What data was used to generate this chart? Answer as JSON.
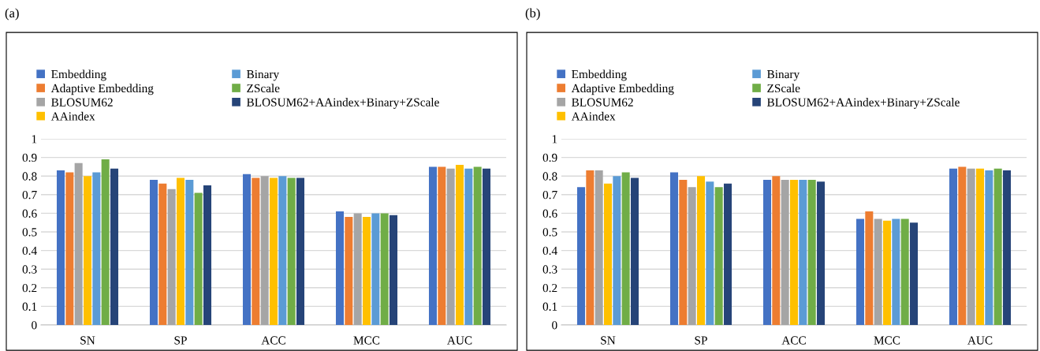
{
  "chart_data": [
    {
      "type": "bar",
      "title": "(a)",
      "categories": [
        "SN",
        "SP",
        "ACC",
        "MCC",
        "AUC"
      ],
      "ylim": [
        0,
        1
      ],
      "yticks": [
        0,
        0.1,
        0.2,
        0.3,
        0.4,
        0.5,
        0.6,
        0.7,
        0.8,
        0.9,
        1
      ],
      "grid": "y",
      "legend": "top left",
      "series": [
        {
          "name": "Embedding",
          "color": "#4472c4",
          "values": [
            0.83,
            0.78,
            0.81,
            0.61,
            0.85
          ]
        },
        {
          "name": "Adaptive Embedding",
          "color": "#ed7d31",
          "values": [
            0.82,
            0.76,
            0.79,
            0.58,
            0.85
          ]
        },
        {
          "name": "BLOSUM62",
          "color": "#a5a5a5",
          "values": [
            0.87,
            0.73,
            0.8,
            0.6,
            0.84
          ]
        },
        {
          "name": "AAindex",
          "color": "#ffc000",
          "values": [
            0.8,
            0.79,
            0.79,
            0.58,
            0.86
          ]
        },
        {
          "name": "Binary",
          "color": "#5b9bd5",
          "values": [
            0.82,
            0.78,
            0.8,
            0.6,
            0.84
          ]
        },
        {
          "name": "ZScale",
          "color": "#70ad47",
          "values": [
            0.89,
            0.71,
            0.79,
            0.6,
            0.85
          ]
        },
        {
          "name": "BLOSUM62+AAindex+Binary+ZScale",
          "color": "#264478",
          "values": [
            0.84,
            0.75,
            0.79,
            0.59,
            0.84
          ]
        }
      ]
    },
    {
      "type": "bar",
      "title": "(b)",
      "categories": [
        "SN",
        "SP",
        "ACC",
        "MCC",
        "AUC"
      ],
      "ylim": [
        0,
        1
      ],
      "yticks": [
        0,
        0.1,
        0.2,
        0.3,
        0.4,
        0.5,
        0.6,
        0.7,
        0.8,
        0.9,
        1
      ],
      "grid": "y",
      "legend": "top left",
      "series": [
        {
          "name": "Embedding",
          "color": "#4472c4",
          "values": [
            0.74,
            0.82,
            0.78,
            0.57,
            0.84
          ]
        },
        {
          "name": "Adaptive Embedding",
          "color": "#ed7d31",
          "values": [
            0.83,
            0.78,
            0.8,
            0.61,
            0.85
          ]
        },
        {
          "name": "BLOSUM62",
          "color": "#a5a5a5",
          "values": [
            0.83,
            0.74,
            0.78,
            0.57,
            0.84
          ]
        },
        {
          "name": "AAindex",
          "color": "#ffc000",
          "values": [
            0.76,
            0.8,
            0.78,
            0.56,
            0.84
          ]
        },
        {
          "name": "Binary",
          "color": "#5b9bd5",
          "values": [
            0.8,
            0.77,
            0.78,
            0.57,
            0.83
          ]
        },
        {
          "name": "ZScale",
          "color": "#70ad47",
          "values": [
            0.82,
            0.74,
            0.78,
            0.57,
            0.84
          ]
        },
        {
          "name": "BLOSUM62+AAindex+Binary+ZScale",
          "color": "#264478",
          "values": [
            0.79,
            0.76,
            0.77,
            0.55,
            0.83
          ]
        }
      ]
    }
  ]
}
